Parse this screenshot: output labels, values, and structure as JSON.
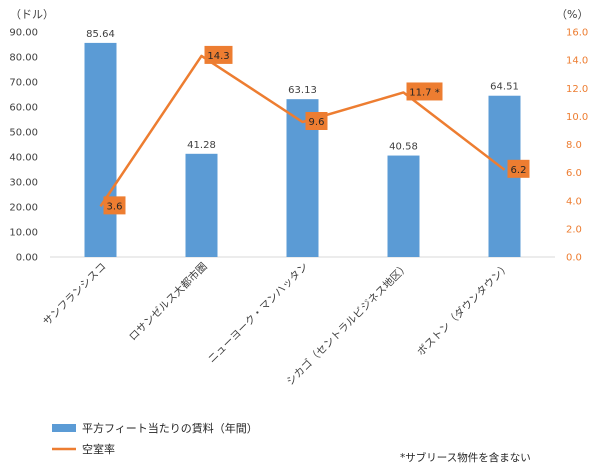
{
  "chart_data": {
    "type": "bar",
    "categories": [
      "サンフランシスコ",
      "ロサンゼルス大都市圏",
      "ニューヨーク・マンハッタン",
      "シカゴ（セントラルビジネス地区）",
      "ボストン（ダウンタウン）"
    ],
    "series": [
      {
        "name": "平方フィート当たりの賃料（年間）",
        "type": "bar",
        "axis": "left",
        "color": "#5B9BD5",
        "values": [
          85.64,
          41.28,
          63.13,
          40.58,
          64.51
        ],
        "labels": [
          "85.64",
          "41.28",
          "63.13",
          "40.58",
          "64.51"
        ]
      },
      {
        "name": "空室率",
        "type": "line",
        "axis": "right",
        "color": "#ED7D31",
        "values": [
          3.6,
          14.3,
          9.6,
          11.7,
          6.2
        ],
        "labels": [
          "3.6",
          "14.3",
          "9.6",
          "11.7 *",
          "6.2"
        ]
      }
    ],
    "y_left": {
      "unit": "（ドル）",
      "ylim": [
        0,
        90
      ],
      "ticks": [
        "0.00",
        "10.00",
        "20.00",
        "30.00",
        "40.00",
        "50.00",
        "60.00",
        "70.00",
        "80.00",
        "90.00"
      ]
    },
    "y_right": {
      "unit": "（%）",
      "ylim": [
        0,
        16
      ],
      "ticks": [
        "0.0",
        "2.0",
        "4.0",
        "6.0",
        "8.0",
        "10.0",
        "12.0",
        "14.0",
        "16.0"
      ]
    },
    "grid": false,
    "legend": "bottom-left",
    "note": "*サブリース物件を含まない"
  }
}
